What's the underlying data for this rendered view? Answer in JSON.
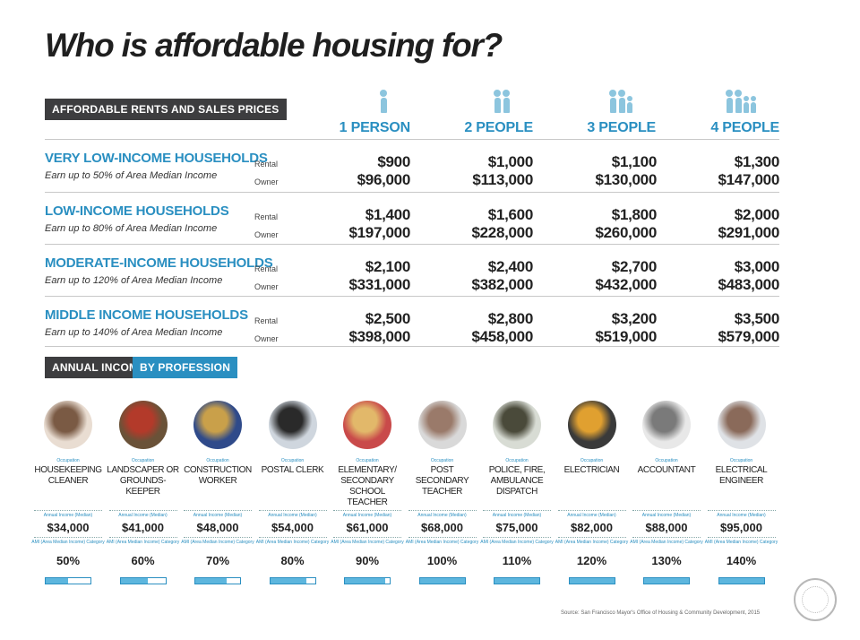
{
  "title": "Who is affordable housing for?",
  "section1_label": "AFFORDABLE RENTS AND SALES PRICES",
  "section2_label_a": "ANNUAL INCOME,",
  "section2_label_b": "BY PROFESSION",
  "columns": [
    {
      "label": "1 PERSON",
      "icon": "one-person-icon",
      "people": 1
    },
    {
      "label": "2 PEOPLE",
      "icon": "two-people-icon",
      "people": 2
    },
    {
      "label": "3 PEOPLE",
      "icon": "three-people-icon",
      "people": 3
    },
    {
      "label": "4 PEOPLE",
      "icon": "four-people-icon",
      "people": 4
    }
  ],
  "rental_label": "Rental",
  "owner_label": "Owner",
  "rows": [
    {
      "name": "VERY LOW-INCOME HOUSEHOLDS",
      "sub": "Earn up to 50% of Area Median Income",
      "rental": [
        "$900",
        "$1,000",
        "$1,100",
        "$1,300"
      ],
      "owner": [
        "$96,000",
        "$113,000",
        "$130,000",
        "$147,000"
      ]
    },
    {
      "name": "LOW-INCOME HOUSEHOLDS",
      "sub": "Earn up to 80% of Area Median Income",
      "rental": [
        "$1,400",
        "$1,600",
        "$1,800",
        "$2,000"
      ],
      "owner": [
        "$197,000",
        "$228,000",
        "$260,000",
        "$291,000"
      ]
    },
    {
      "name": "MODERATE-INCOME HOUSEHOLDS",
      "sub": "Earn up to 120% of Area Median Income",
      "rental": [
        "$2,100",
        "$2,400",
        "$2,700",
        "$3,000"
      ],
      "owner": [
        "$331,000",
        "$382,000",
        "$432,000",
        "$483,000"
      ]
    },
    {
      "name": "MIDDLE INCOME HOUSEHOLDS",
      "sub": "Earn up to 140% of Area Median Income",
      "rental": [
        "$2,500",
        "$2,800",
        "$3,200",
        "$3,500"
      ],
      "owner": [
        "$398,000",
        "$458,000",
        "$519,000",
        "$579,000"
      ]
    }
  ],
  "occupation_label": "Occupation",
  "income_label": "Annual Income (Median)",
  "ami_label": "AMI (Area Median Income) Category",
  "professions": [
    {
      "name": "HOUSEKEEPING CLEANER",
      "income": "$34,000",
      "ami": "50%",
      "fill": 0.5,
      "photo_colors": [
        "#e9ddd2",
        "#7a5a44"
      ]
    },
    {
      "name": "LANDSCAPER OR GROUNDS-KEEPER",
      "income": "$41,000",
      "ami": "60%",
      "fill": 0.6,
      "photo_colors": [
        "#6a5238",
        "#b33a2a"
      ]
    },
    {
      "name": "CONSTRUCTION WORKER",
      "income": "$48,000",
      "ami": "70%",
      "fill": 0.7,
      "photo_colors": [
        "#2f4a8a",
        "#c9a04a"
      ]
    },
    {
      "name": "POSTAL CLERK",
      "income": "$54,000",
      "ami": "80%",
      "fill": 0.8,
      "photo_colors": [
        "#cfd6de",
        "#2a2a2a"
      ]
    },
    {
      "name": "ELEMENTARY/ SECONDARY SCHOOL TEACHER",
      "income": "$61,000",
      "ami": "90%",
      "fill": 0.9,
      "photo_colors": [
        "#c94a4a",
        "#e2b86a"
      ]
    },
    {
      "name": "POST SECONDARY TEACHER",
      "income": "$68,000",
      "ami": "100%",
      "fill": 1.0,
      "photo_colors": [
        "#d9d9d9",
        "#9a7a6a"
      ]
    },
    {
      "name": "POLICE, FIRE, AMBULANCE DISPATCH",
      "income": "$75,000",
      "ami": "110%",
      "fill": 1.0,
      "photo_colors": [
        "#d8dcd4",
        "#4a4a3a"
      ]
    },
    {
      "name": "ELECTRICIAN",
      "income": "$82,000",
      "ami": "120%",
      "fill": 1.0,
      "photo_colors": [
        "#3a3a3a",
        "#e0a030"
      ]
    },
    {
      "name": "ACCOUNTANT",
      "income": "$88,000",
      "ami": "130%",
      "fill": 1.0,
      "photo_colors": [
        "#e8e8e8",
        "#7a7a7a"
      ]
    },
    {
      "name": "ELECTRICAL ENGINEER",
      "income": "$95,000",
      "ami": "140%",
      "fill": 1.0,
      "photo_colors": [
        "#dfe2e6",
        "#8a6a5a"
      ]
    }
  ],
  "source": "Source: San Francisco Mayor's Office of Housing & Community Development, 2015",
  "colors": {
    "accent": "#2a8fc1",
    "dark_label": "#3d3d3f",
    "icon": "#8cc5de",
    "bar_fill": "#5db6de"
  }
}
